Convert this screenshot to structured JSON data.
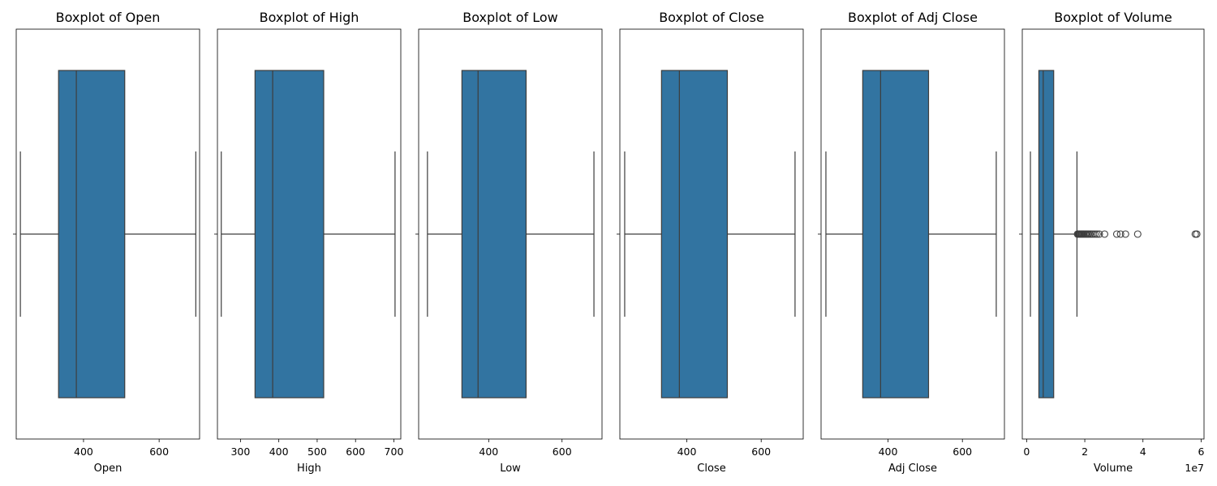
{
  "chart_data": [
    {
      "type": "boxplot",
      "title": "Boxplot of Open",
      "xlabel": "Open",
      "xlim": [
        222,
        707
      ],
      "xticks": [
        400,
        600
      ],
      "tick_labels": [
        "400",
        "600"
      ],
      "whisker_low": 233,
      "q1": 334,
      "median": 381,
      "q3": 509,
      "whisker_high": 697,
      "outliers": []
    },
    {
      "type": "boxplot",
      "title": "Boxplot of High",
      "xlabel": "High",
      "xlim": [
        240,
        718
      ],
      "xticks": [
        300,
        400,
        500,
        600,
        700
      ],
      "tick_labels": [
        "300",
        "400",
        "500",
        "600",
        "700"
      ],
      "whisker_low": 250,
      "q1": 338,
      "median": 384,
      "q3": 517,
      "whisker_high": 703,
      "outliers": []
    },
    {
      "type": "boxplot",
      "title": "Boxplot of Low",
      "xlabel": "Low",
      "xlim": [
        209,
        709
      ],
      "xticks": [
        400,
        600
      ],
      "tick_labels": [
        "400",
        "600"
      ],
      "whisker_low": 233,
      "q1": 327,
      "median": 371,
      "q3": 502,
      "whisker_high": 687,
      "outliers": []
    },
    {
      "type": "boxplot",
      "title": "Boxplot of Close",
      "xlabel": "Close",
      "xlim": [
        220,
        713
      ],
      "xticks": [
        400,
        600
      ],
      "tick_labels": [
        "400",
        "600"
      ],
      "whisker_low": 233,
      "q1": 332,
      "median": 380,
      "q3": 509,
      "whisker_high": 691,
      "outliers": []
    },
    {
      "type": "boxplot",
      "title": "Boxplot of Adj Close",
      "xlabel": "Adj Close",
      "xlim": [
        220,
        713
      ],
      "xticks": [
        400,
        600
      ],
      "tick_labels": [
        "400",
        "600"
      ],
      "whisker_low": 233,
      "q1": 332,
      "median": 380,
      "q3": 509,
      "whisker_high": 691,
      "outliers": []
    },
    {
      "type": "boxplot",
      "title": "Boxplot of Volume",
      "xlabel": "Volume",
      "axis_offset_label": "1e7",
      "xlim": [
        -1500000,
        61000000
      ],
      "xticks": [
        0,
        20000000,
        40000000,
        60000000
      ],
      "tick_labels": [
        "0",
        "2",
        "4",
        "6"
      ],
      "whisker_low": 1300000,
      "q1": 4200000,
      "median": 5700000,
      "q3": 9300000,
      "whisker_high": 17300000,
      "outliers": [
        17500000,
        17800000,
        18000000,
        18200000,
        18500000,
        18800000,
        19000000,
        19300000,
        19600000,
        20000000,
        20400000,
        20800000,
        21200000,
        21700000,
        22200000,
        22800000,
        23500000,
        24200000,
        25000000,
        26800000,
        31000000,
        32300000,
        34000000,
        38200000,
        58000000,
        58500000
      ]
    }
  ]
}
